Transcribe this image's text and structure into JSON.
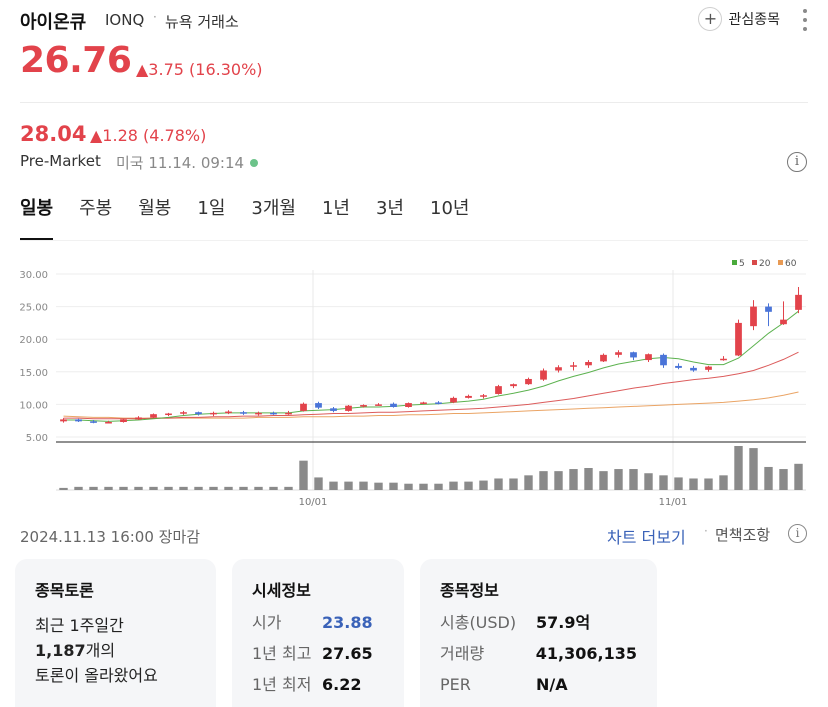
{
  "header": {
    "name": "아이온큐",
    "ticker": "IONQ",
    "separator": "·",
    "exchange": "뉴욕 거래소",
    "watch_icon": "+",
    "watch_label": "관심종목"
  },
  "quote": {
    "price": "26.76",
    "change": "▲3.75 (16.30%)"
  },
  "premarket": {
    "price": "28.04",
    "change": "▲1.28 (4.78%)",
    "label": "Pre-Market",
    "time": "미국 11.14. 09:14"
  },
  "tabs": [
    "일봉",
    "주봉",
    "월봉",
    "1일",
    "3개월",
    "1년",
    "3년",
    "10년"
  ],
  "chart_data": {
    "type": "candlestick",
    "y_ticks": [
      "30.00",
      "25.00",
      "20.00",
      "15.00",
      "10.00",
      "5.00"
    ],
    "ylim": [
      5,
      30
    ],
    "x_ticks": [
      "10/01",
      "11/01"
    ],
    "legend": [
      {
        "name": "5",
        "color": "#4aaa3c"
      },
      {
        "name": "20",
        "color": "#d84a4a"
      },
      {
        "name": "60",
        "color": "#e89a54"
      }
    ],
    "ohlc": [
      [
        7.4,
        7.9,
        7.2,
        7.7
      ],
      [
        7.7,
        7.8,
        7.3,
        7.4
      ],
      [
        7.4,
        7.6,
        7.1,
        7.2
      ],
      [
        7.3,
        7.5,
        7.1,
        7.3
      ],
      [
        7.3,
        7.8,
        7.2,
        7.7
      ],
      [
        7.7,
        8.2,
        7.6,
        8.0
      ],
      [
        8.0,
        8.6,
        7.9,
        8.5
      ],
      [
        8.4,
        8.7,
        8.2,
        8.6
      ],
      [
        8.6,
        9.0,
        8.4,
        8.8
      ],
      [
        8.8,
        8.9,
        8.3,
        8.5
      ],
      [
        8.5,
        8.9,
        8.2,
        8.7
      ],
      [
        8.7,
        9.1,
        8.5,
        8.9
      ],
      [
        8.8,
        9.0,
        8.4,
        8.6
      ],
      [
        8.6,
        8.9,
        8.3,
        8.7
      ],
      [
        8.7,
        8.9,
        8.4,
        8.6
      ],
      [
        8.6,
        9.0,
        8.4,
        8.7
      ],
      [
        9.0,
        10.3,
        8.9,
        10.1
      ],
      [
        10.2,
        10.4,
        9.3,
        9.5
      ],
      [
        9.4,
        9.6,
        8.8,
        9.0
      ],
      [
        9.0,
        9.9,
        8.9,
        9.8
      ],
      [
        9.7,
        10.0,
        9.5,
        9.9
      ],
      [
        9.9,
        10.2,
        9.8,
        10.0
      ],
      [
        10.1,
        10.3,
        9.5,
        9.6
      ],
      [
        9.6,
        10.3,
        9.5,
        10.2
      ],
      [
        10.2,
        10.4,
        10.0,
        10.3
      ],
      [
        10.3,
        10.5,
        10.0,
        10.2
      ],
      [
        10.3,
        11.2,
        10.2,
        11.0
      ],
      [
        11.0,
        11.5,
        10.9,
        11.3
      ],
      [
        11.3,
        11.6,
        10.9,
        11.4
      ],
      [
        11.6,
        13.0,
        11.5,
        12.8
      ],
      [
        12.8,
        13.2,
        12.5,
        13.1
      ],
      [
        13.1,
        14.1,
        13.0,
        13.9
      ],
      [
        13.8,
        15.5,
        13.6,
        15.2
      ],
      [
        15.2,
        16.0,
        14.9,
        15.7
      ],
      [
        15.8,
        16.5,
        15.2,
        16.0
      ],
      [
        16.0,
        16.8,
        15.6,
        16.5
      ],
      [
        16.6,
        17.8,
        16.5,
        17.6
      ],
      [
        17.6,
        18.3,
        17.2,
        18.0
      ],
      [
        18.0,
        18.1,
        16.8,
        17.2
      ],
      [
        16.8,
        17.8,
        16.5,
        17.7
      ],
      [
        17.6,
        17.8,
        15.6,
        16.0
      ],
      [
        15.9,
        16.3,
        15.4,
        15.6
      ],
      [
        15.6,
        15.9,
        15.0,
        15.2
      ],
      [
        15.3,
        15.9,
        15.0,
        15.8
      ],
      [
        16.9,
        17.4,
        16.7,
        17.0
      ],
      [
        17.5,
        23.0,
        17.4,
        22.5
      ],
      [
        22.0,
        26.0,
        21.4,
        25.0
      ],
      [
        25.0,
        25.5,
        22.0,
        24.2
      ],
      [
        22.3,
        25.8,
        22.2,
        23.0
      ],
      [
        24.5,
        28.0,
        24.0,
        26.8
      ]
    ],
    "ma5": [
      7.6,
      7.6,
      7.5,
      7.4,
      7.5,
      7.6,
      7.8,
      8.0,
      8.3,
      8.5,
      8.6,
      8.7,
      8.7,
      8.7,
      8.7,
      8.7,
      9.0,
      9.1,
      9.2,
      9.4,
      9.6,
      9.6,
      9.7,
      9.9,
      10.0,
      10.1,
      10.3,
      10.5,
      10.8,
      11.3,
      11.7,
      12.2,
      12.8,
      13.6,
      14.3,
      14.9,
      15.6,
      16.2,
      16.6,
      17.0,
      17.2,
      17.0,
      16.5,
      16.1,
      16.1,
      17.1,
      19.0,
      20.9,
      22.5,
      24.3
    ],
    "ma20": [
      7.9,
      7.9,
      7.8,
      7.8,
      7.8,
      7.8,
      7.9,
      7.9,
      8.0,
      8.0,
      8.1,
      8.1,
      8.2,
      8.2,
      8.3,
      8.3,
      8.4,
      8.5,
      8.6,
      8.6,
      8.7,
      8.8,
      8.8,
      8.9,
      9.0,
      9.1,
      9.2,
      9.3,
      9.4,
      9.6,
      9.8,
      10.0,
      10.3,
      10.6,
      10.9,
      11.3,
      11.7,
      12.1,
      12.5,
      12.8,
      13.2,
      13.5,
      13.8,
      14.0,
      14.3,
      14.7,
      15.2,
      16.0,
      16.9,
      18.0
    ],
    "ma60": [
      8.2,
      8.1,
      8.0,
      8.0,
      7.9,
      7.9,
      7.9,
      7.9,
      7.9,
      7.9,
      7.9,
      7.9,
      7.9,
      8.0,
      8.0,
      8.0,
      8.1,
      8.1,
      8.1,
      8.2,
      8.2,
      8.3,
      8.3,
      8.4,
      8.4,
      8.5,
      8.6,
      8.6,
      8.7,
      8.8,
      8.9,
      9.0,
      9.1,
      9.2,
      9.3,
      9.4,
      9.5,
      9.6,
      9.7,
      9.8,
      9.9,
      10.0,
      10.1,
      10.2,
      10.3,
      10.5,
      10.7,
      11.0,
      11.4,
      11.9
    ],
    "volume": [
      2,
      3,
      3,
      3,
      3,
      3,
      3,
      3,
      3,
      3,
      3,
      3,
      3,
      3,
      3,
      3,
      28,
      12,
      8,
      8,
      8,
      7,
      7,
      6,
      6,
      6,
      8,
      8,
      9,
      11,
      11,
      14,
      18,
      18,
      20,
      21,
      18,
      20,
      20,
      16,
      14,
      12,
      11,
      11,
      14,
      42,
      40,
      22,
      20,
      25
    ],
    "grid": true
  },
  "status": {
    "date": "2024.11.13 16:00 장마감",
    "chart_more": "차트 더보기",
    "separator": "·",
    "disclaimer": "면책조항"
  },
  "cards": {
    "discussion": {
      "title": "종목토론",
      "line1": "최근 1주일간",
      "count": "1,187",
      "count_suffix": "개의",
      "line3": "토론이 올라왔어요"
    },
    "market": {
      "title": "시세정보",
      "rows": [
        {
          "label": "시가",
          "value": "23.88"
        },
        {
          "label": "1년 최고",
          "value": "27.65"
        },
        {
          "label": "1년 최저",
          "value": "6.22"
        }
      ]
    },
    "info": {
      "title": "종목정보",
      "rows": [
        {
          "label": "시총(USD)",
          "value": "57.9억"
        },
        {
          "label": "거래량",
          "value": "41,306,135"
        },
        {
          "label": "PER",
          "value": "N/A"
        }
      ]
    }
  },
  "colors": {
    "up": "#e2434b",
    "down": "#4a74d8",
    "link": "#3a62b8"
  }
}
